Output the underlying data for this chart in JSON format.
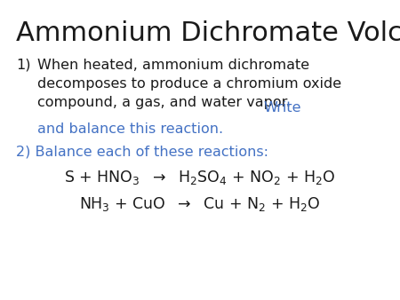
{
  "title": "Ammonium Dichromate Volcano!",
  "title_fontsize": 22,
  "background_color": "#ffffff",
  "black_color": "#1a1a1a",
  "blue_color": "#4472C4",
  "body_fontsize": 11.5,
  "eq_fontsize": 12.5,
  "item1_black": "When heated, ammonium dichromate\ndecomposes to produce a chromium oxide\ncompound, a gas, and water vapor. ",
  "item1_blue": "Write\nand balance this reaction.",
  "item2_blue": "2) Balance each of these reactions:",
  "eq1_str": "S + HNO$_3$  $\\rightarrow$  H$_2$SO$_4$ + NO$_2$ + H$_2$O",
  "eq2_str": "NH$_3$ + CuO  $\\rightarrow$  Cu + N$_2$ + H$_2$O"
}
